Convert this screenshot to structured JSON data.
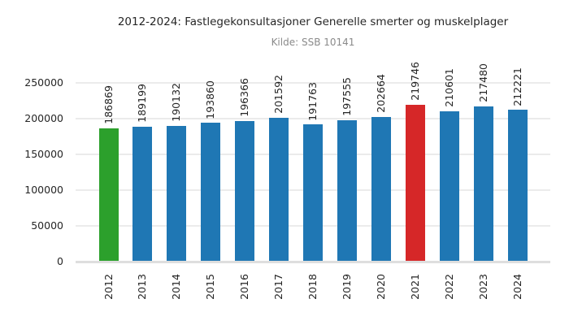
{
  "chart_data": {
    "type": "bar",
    "title": "2012-2024: Fastlegekonsultasjoner Generelle smerter og muskelplager",
    "subtitle": "Kilde: SSB 10141",
    "categories": [
      "2012",
      "2013",
      "2014",
      "2015",
      "2016",
      "2017",
      "2018",
      "2019",
      "2020",
      "2021",
      "2022",
      "2023",
      "2024"
    ],
    "values": [
      186869,
      189199,
      190132,
      193860,
      196366,
      201592,
      191763,
      197555,
      202664,
      219746,
      210601,
      217480,
      212221
    ],
    "default_bar_color": "#1f77b4",
    "highlight_colors": {
      "2012": "#2ca02c",
      "2021": "#d62728"
    },
    "yticks": [
      0,
      50000,
      100000,
      150000,
      200000,
      250000
    ],
    "ylim": [
      0,
      268000
    ],
    "xlabel": "",
    "ylabel": "",
    "grid": true,
    "legend": "none",
    "value_labels": true,
    "value_label_rotation": 90,
    "xtick_rotation": 90
  },
  "style": {
    "background": "#ffffff",
    "grid_color": "#ebebeb",
    "axis_line_color": "#dedede",
    "text_color": "#262626",
    "subtitle_color": "#8a8a8a"
  }
}
